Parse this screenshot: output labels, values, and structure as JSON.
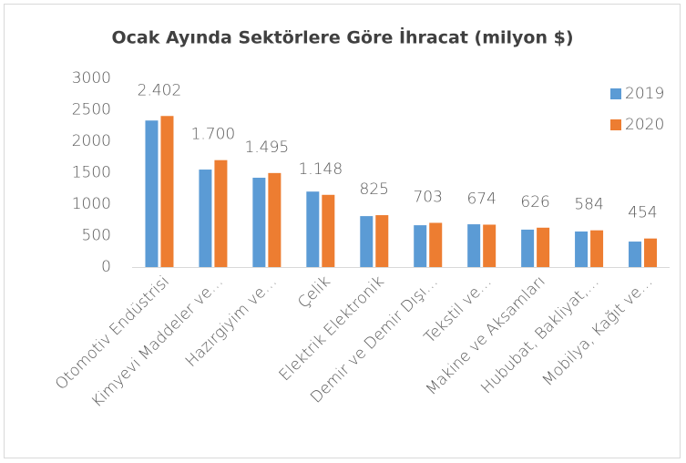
{
  "chart_data": {
    "type": "bar",
    "title": "Ocak Ayında Sektörlere Göre İhracat (milyon $)",
    "categories": [
      "Otomotiv Endüstrisi",
      "Kimyevi Maddeler ve…",
      "Hazırgiyim ve…",
      "Çelik",
      "Elektrik Elektronik",
      "Demir ve Demir Dışı…",
      "Tekstil ve…",
      "Makine ve Aksamları",
      "Hububat, Bakliyat,…",
      "Mobilya, Kağıt ve…"
    ],
    "series": [
      {
        "name": "2019",
        "color": "#5b9bd5",
        "values": [
          2330,
          1550,
          1420,
          1200,
          810,
          665,
          680,
          595,
          565,
          405
        ]
      },
      {
        "name": "2020",
        "color": "#ed7d31",
        "values": [
          2402,
          1700,
          1495,
          1148,
          825,
          703,
          674,
          626,
          584,
          454
        ],
        "value_labels": [
          "2.402",
          "1.700",
          "1.495",
          "1.148",
          "825",
          "703",
          "674",
          "626",
          "584",
          "454"
        ]
      }
    ],
    "ylim": [
      0,
      3000
    ],
    "yticks": [
      0,
      500,
      1000,
      1500,
      2000,
      2500,
      3000
    ],
    "grid": false,
    "legend": "top-right"
  }
}
